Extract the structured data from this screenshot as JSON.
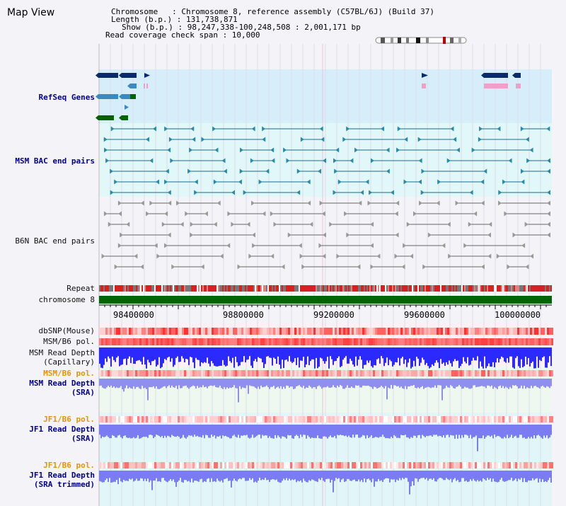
{
  "page": {
    "title": "Map View"
  },
  "header": {
    "lines": [
      "Chromosome   : Chromosome 8, reference assembly (C57BL/6J) (Build 37)",
      "Length (b.p.) : 131,738,871",
      "Show (b.p.) : 98,247,338-100,248,508 : 2,001,171 bp",
      "Read coverage check span : 10,000"
    ]
  },
  "tracks": {
    "refseq": "RefSeq Genes",
    "msm_bac": "MSM BAC end pairs",
    "b6n_bac": "B6N BAC end pairs",
    "repeat": "Repeat",
    "chromosome": "chromosome 8",
    "dbsnp": "dbSNP(Mouse)",
    "msm_b6_pol_1": "MSM/B6 pol.",
    "msm_read_depth_cap_1": "MSM Read Depth",
    "msm_read_depth_cap_2": "(Capillary)",
    "msm_b6_pol_2": "MSM/B6 pol.",
    "msm_read_depth_sra_1": "MSM Read Depth",
    "msm_read_depth_sra_2": "(SRA)",
    "jf1_b6_pol_1": "JF1/B6 pol.",
    "jf1_read_depth_sra_1": "JF1 Read Depth",
    "jf1_read_depth_sra_2": "(SRA)",
    "jf1_b6_pol_2": "JF1/B6 pol.",
    "jf1_read_depth_trim_1": "JF1 Read Depth",
    "jf1_read_depth_trim_2": "(SRA trimmed)"
  },
  "axis": {
    "ticks": [
      "98400000",
      "98800000",
      "99200000",
      "99600000",
      "100000000"
    ]
  },
  "colors": {
    "refseq_bg": "#d6eefa",
    "bac_bg": "#e2f8f8",
    "chrom": "#006400",
    "blue_depth": "#2a2aff",
    "sra_depth": "#8f8ff0",
    "snp_red": "#ff5a5a",
    "snp_pink": "#ffb0b0",
    "orange_label": "#e69500"
  }
}
